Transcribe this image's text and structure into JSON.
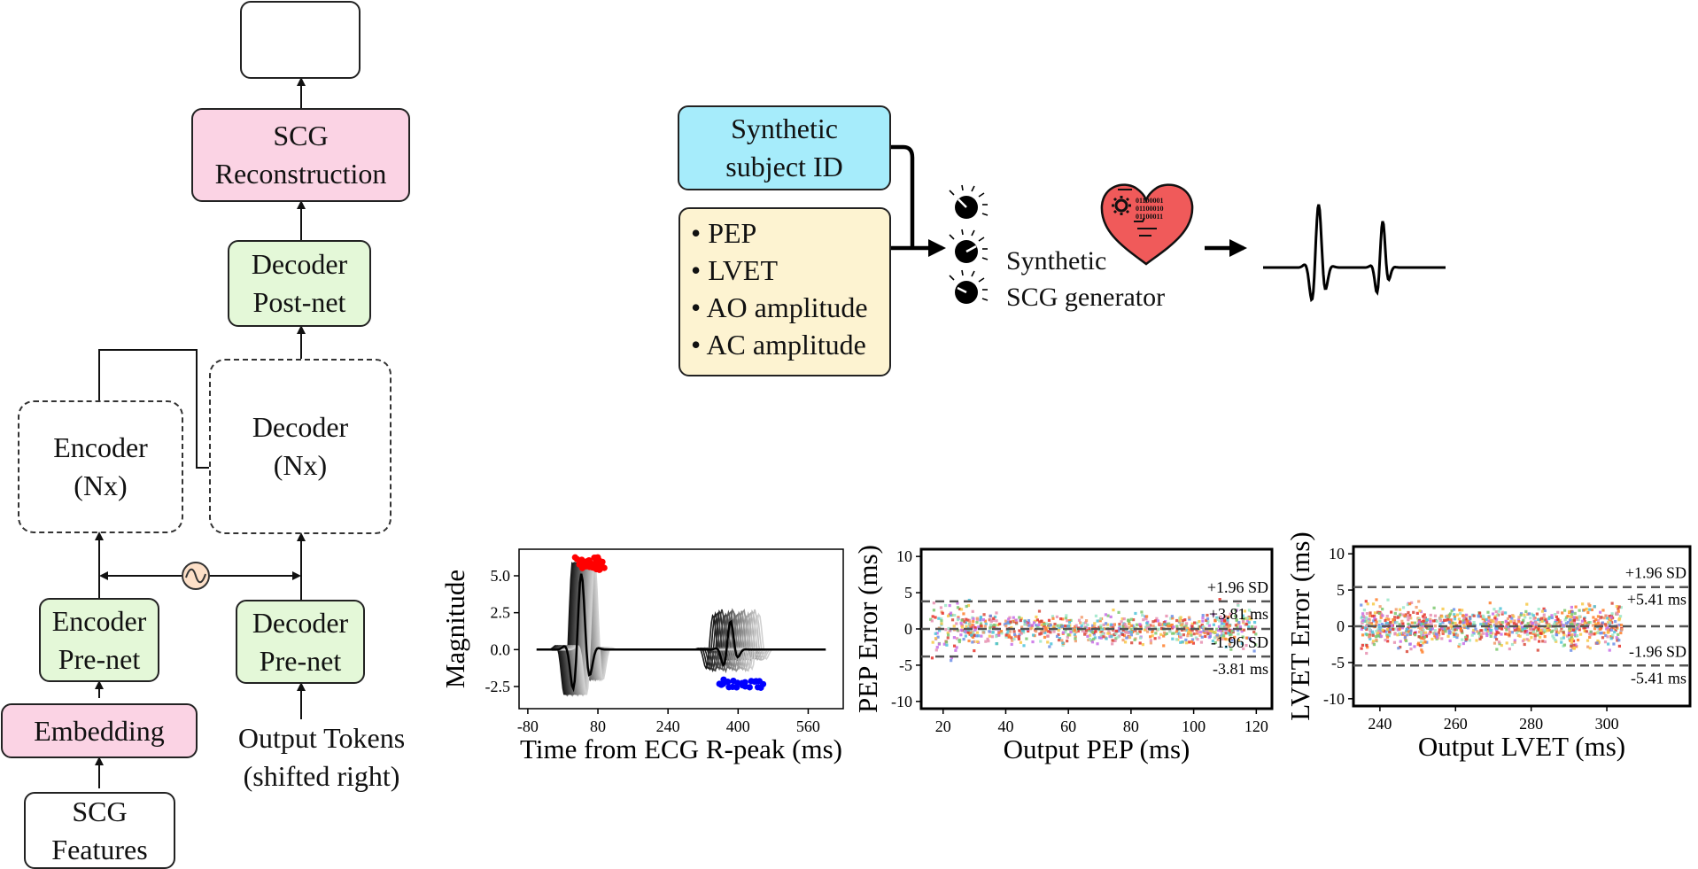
{
  "transformer": {
    "scg_reconstruction": [
      "SCG",
      "Reconstruction"
    ],
    "decoder_postnet": [
      "Decoder",
      "Post-net"
    ],
    "encoder": [
      "Encoder",
      "(Nx)"
    ],
    "decoder": [
      "Decoder",
      "(Nx)"
    ],
    "encoder_prenet": [
      "Encoder",
      "Pre-net"
    ],
    "decoder_prenet": [
      "Decoder",
      "Pre-net"
    ],
    "embedding": "Embedding",
    "output_tokens": [
      "Output Tokens",
      "(shifted right)"
    ],
    "scg_features": [
      "SCG",
      "Features"
    ]
  },
  "generator": {
    "subject_id": [
      "Synthetic",
      "subject ID"
    ],
    "params": [
      "• PEP",
      "• LVET",
      "• AO amplitude",
      "• AC amplitude"
    ],
    "generator_label": [
      "Synthetic",
      "SCG generator"
    ],
    "binary": [
      "01100001",
      "01100010",
      "01100011"
    ]
  },
  "colors": {
    "pink": "#fbd3e4",
    "green": "#e4f8d8",
    "cyan": "#a6ecfb",
    "cream": "#fdf3d1",
    "generator_blue": "#d6e4fb",
    "heart_red": "#f05a5a",
    "ao_peak_red": "#ff0000",
    "ac_peak_blue": "#0000ff"
  },
  "chart_data": [
    {
      "type": "line",
      "xlabel": "Time from ECG R-peak (ms)",
      "ylabel": "Magnitude",
      "xticks": [
        "-80",
        "80",
        "240",
        "400",
        "560"
      ],
      "yticks": [
        "5.0",
        "2.5",
        "0.0",
        "-2.5"
      ],
      "xlim": [
        -100,
        640
      ],
      "ylim": [
        -4,
        6.8
      ]
    },
    {
      "type": "scatter",
      "xlabel": "Output PEP (ms)",
      "ylabel": "PEP Error (ms)",
      "xticks": [
        "20",
        "40",
        "60",
        "80",
        "100",
        "120"
      ],
      "yticks": [
        "10",
        "5",
        "0",
        "-5",
        "-10"
      ],
      "xlim": [
        13,
        125
      ],
      "ylim": [
        -11,
        11
      ],
      "mean": 0,
      "upper_loa": 3.81,
      "lower_loa": -3.81,
      "annotations": [
        "+1.96 SD",
        "+3.81 ms",
        "-1.96 SD",
        "-3.81 ms"
      ]
    },
    {
      "type": "scatter",
      "xlabel": "Output LVET (ms)",
      "ylabel": "LVET Error (ms)",
      "xticks": [
        "240",
        "260",
        "280",
        "300"
      ],
      "yticks": [
        "10",
        "5",
        "0",
        "-5",
        "-10"
      ],
      "xlim": [
        233,
        322
      ],
      "ylim": [
        -11,
        11
      ],
      "mean": 0,
      "upper_loa": 5.41,
      "lower_loa": -5.41,
      "annotations": [
        "+1.96 SD",
        "+5.41 ms",
        "-1.96 SD",
        "-5.41 ms"
      ]
    }
  ]
}
